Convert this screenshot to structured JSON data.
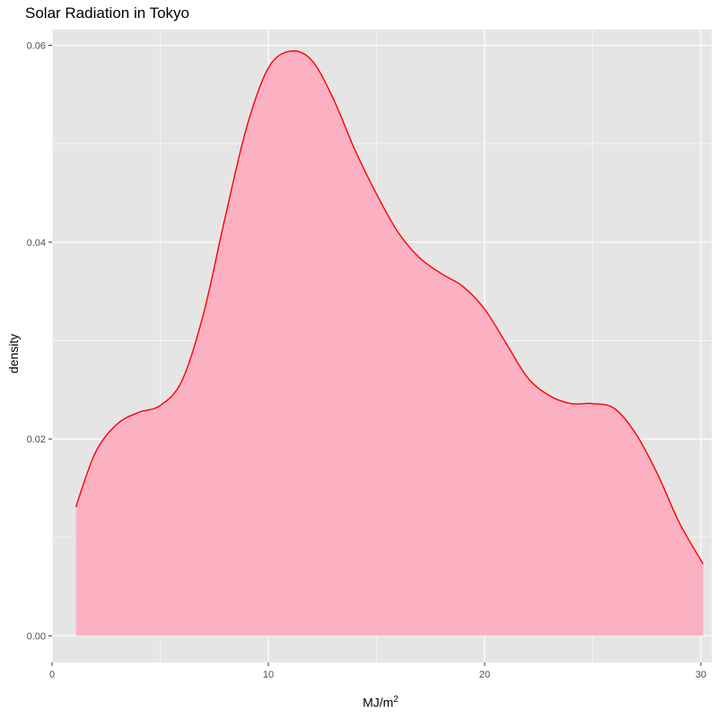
{
  "chart_data": {
    "type": "area",
    "title": "Solar Radiation in Tokyo",
    "xlabel_base": "MJ/m",
    "xlabel_sup": "2",
    "ylabel": "density",
    "xlim": [
      0,
      30.5
    ],
    "ylim": [
      -0.0027,
      0.0616
    ],
    "x_ticks": [
      0,
      10,
      20,
      30
    ],
    "y_ticks": [
      0.0,
      0.02,
      0.04,
      0.06
    ],
    "x_tick_labels": [
      "0",
      "10",
      "20",
      "30"
    ],
    "y_tick_labels": [
      "0.00",
      "0.02",
      "0.04",
      "0.06"
    ],
    "grid": true,
    "fill_color": "#FBB1C2",
    "line_color": "#FF0000",
    "panel_color": "#E5E5E5",
    "grid_color": "#FFFFFF",
    "series": [
      {
        "x": [
          1.1,
          2,
          3,
          4,
          5,
          6,
          7,
          8,
          9,
          10,
          11,
          12,
          13,
          14,
          15,
          16,
          17,
          18,
          19,
          20,
          21,
          22,
          23,
          24,
          25,
          26,
          27,
          28,
          29,
          30.1
        ],
        "y": [
          0.0131,
          0.0186,
          0.0215,
          0.0227,
          0.0234,
          0.0259,
          0.0327,
          0.0425,
          0.0517,
          0.0577,
          0.0594,
          0.0585,
          0.0546,
          0.0494,
          0.0449,
          0.041,
          0.0384,
          0.0368,
          0.0355,
          0.0332,
          0.0297,
          0.0262,
          0.0244,
          0.0236,
          0.0236,
          0.0231,
          0.0205,
          0.0164,
          0.0115,
          0.0073
        ]
      }
    ]
  }
}
